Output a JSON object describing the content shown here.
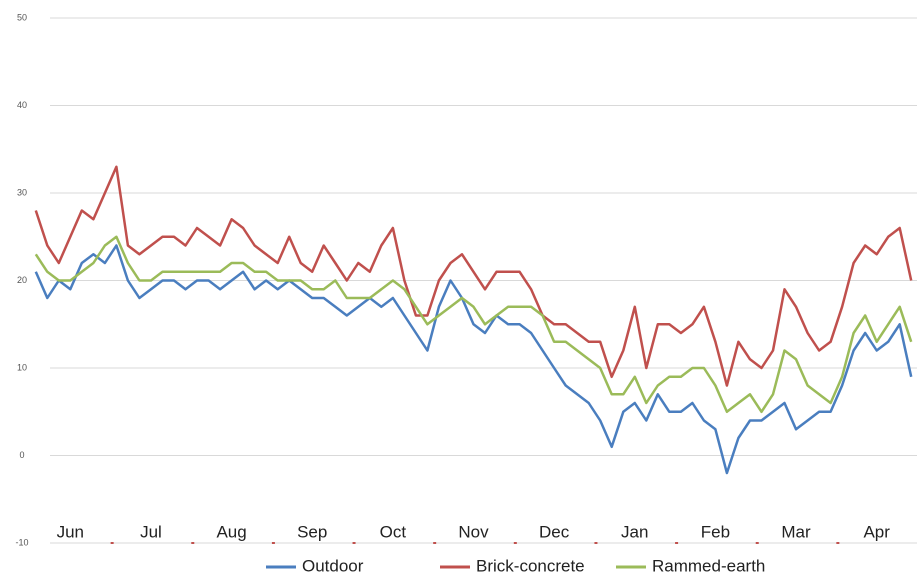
{
  "chart_data": {
    "type": "line",
    "categories": [
      null,
      null,
      null,
      "Jun",
      null,
      null,
      null,
      null,
      null,
      null,
      "Jul",
      null,
      null,
      null,
      null,
      null,
      null,
      "Aug",
      null,
      null,
      null,
      null,
      null,
      null,
      "Sep",
      null,
      null,
      null,
      null,
      null,
      null,
      "Oct",
      null,
      null,
      null,
      null,
      null,
      null,
      "Nov",
      null,
      null,
      null,
      null,
      null,
      null,
      "Dec",
      null,
      null,
      null,
      null,
      null,
      null,
      "Jan",
      null,
      null,
      null,
      null,
      null,
      null,
      "Feb",
      null,
      null,
      null,
      null,
      null,
      null,
      "Mar",
      null,
      null,
      null,
      null,
      null,
      null,
      "Apr",
      null,
      null,
      null
    ],
    "series": [
      {
        "name": "Outdoor",
        "color": "#4a7ebf",
        "values": [
          21,
          18,
          20,
          19,
          22,
          23,
          22,
          24,
          20,
          18,
          19,
          20,
          20,
          19,
          20,
          20,
          19,
          20,
          21,
          19,
          20,
          19,
          20,
          19,
          18,
          18,
          17,
          16,
          17,
          18,
          17,
          18,
          16,
          14,
          12,
          17,
          20,
          18,
          15,
          14,
          16,
          15,
          15,
          14,
          12,
          10,
          8,
          7,
          6,
          4,
          1,
          5,
          6,
          4,
          7,
          5,
          5,
          6,
          4,
          3,
          -2,
          2,
          4,
          4,
          5,
          6,
          3,
          4,
          5,
          5,
          8,
          12,
          14,
          12,
          13,
          15,
          9
        ]
      },
      {
        "name": "Brick-concrete",
        "color": "#c0504d",
        "values": [
          28,
          24,
          22,
          25,
          28,
          27,
          30,
          33,
          24,
          23,
          24,
          25,
          25,
          24,
          26,
          25,
          24,
          27,
          26,
          24,
          23,
          22,
          25,
          22,
          21,
          24,
          22,
          20,
          22,
          21,
          24,
          26,
          20,
          16,
          16,
          20,
          22,
          23,
          21,
          19,
          21,
          21,
          21,
          19,
          16,
          15,
          15,
          14,
          13,
          13,
          9,
          12,
          17,
          10,
          15,
          15,
          14,
          15,
          17,
          13,
          8,
          13,
          11,
          10,
          12,
          19,
          17,
          14,
          12,
          13,
          17,
          22,
          24,
          23,
          25,
          26,
          20
        ]
      },
      {
        "name": "Rammed-earth",
        "color": "#9bbb59",
        "values": [
          23,
          21,
          20,
          20,
          21,
          22,
          24,
          25,
          22,
          20,
          20,
          21,
          21,
          21,
          21,
          21,
          21,
          22,
          22,
          21,
          21,
          20,
          20,
          20,
          19,
          19,
          20,
          18,
          18,
          18,
          19,
          20,
          19,
          17,
          15,
          16,
          17,
          18,
          17,
          15,
          16,
          17,
          17,
          17,
          16,
          13,
          13,
          12,
          11,
          10,
          7,
          7,
          9,
          6,
          8,
          9,
          9,
          10,
          10,
          8,
          5,
          6,
          7,
          5,
          7,
          12,
          11,
          8,
          7,
          6,
          9,
          14,
          16,
          13,
          15,
          17,
          13
        ]
      }
    ],
    "ylim": [
      -10,
      50
    ],
    "yticks": [
      -10,
      0,
      10,
      20,
      30,
      40,
      50
    ],
    "grid": true
  }
}
